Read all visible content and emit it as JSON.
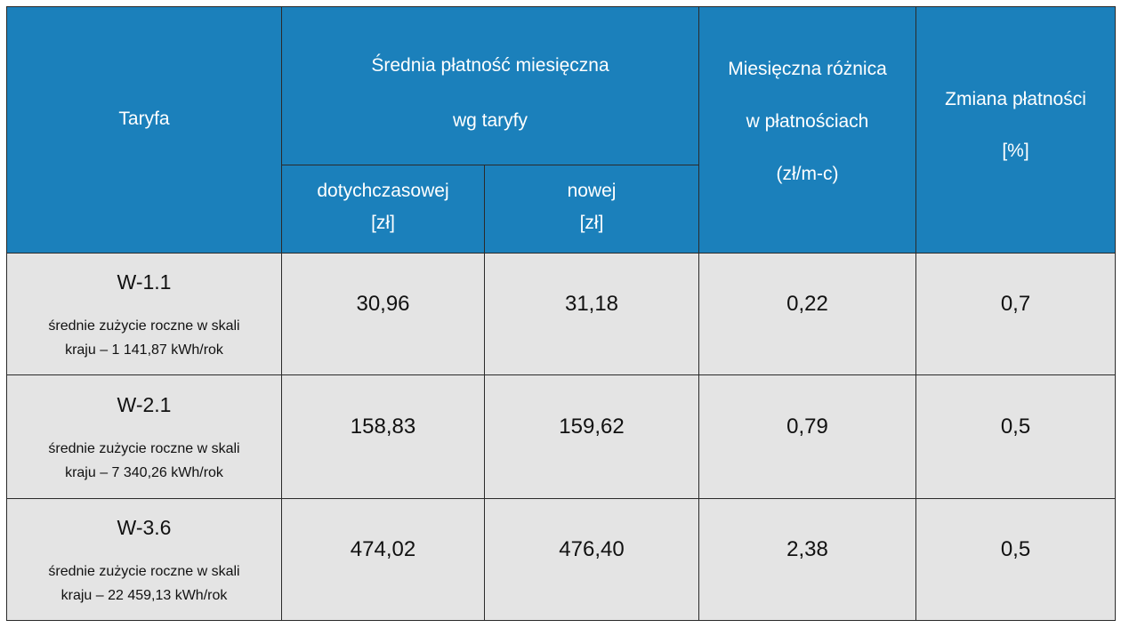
{
  "table": {
    "header": {
      "tariff": "Taryfa",
      "avg_payment": [
        "Średnia płatność miesięczna",
        "wg taryfy"
      ],
      "previous": [
        "dotychczasowej",
        "[zł]"
      ],
      "new": [
        "nowej",
        "[zł]"
      ],
      "monthly_diff": [
        "Miesięczna różnica",
        "w płatnościach",
        "(zł/m-c)"
      ],
      "change": [
        "Zmiana płatności",
        "[%]"
      ]
    },
    "rows": [
      {
        "tariff": "W-1.1",
        "note": [
          "średnie zużycie roczne w skali",
          "kraju – 1 141,87 kWh/rok"
        ],
        "previous": "30,96",
        "new": "31,18",
        "diff": "0,22",
        "change": "0,7"
      },
      {
        "tariff": "W-2.1",
        "note": [
          "średnie zużycie roczne w skali",
          "kraju – 7 340,26 kWh/rok"
        ],
        "previous": "158,83",
        "new": "159,62",
        "diff": "0,79",
        "change": "0,5"
      },
      {
        "tariff": "W-3.6",
        "note": [
          "średnie zużycie roczne w skali",
          "kraju – 22 459,13 kWh/rok"
        ],
        "previous": "474,02",
        "new": "476,40",
        "diff": "2,38",
        "change": "0,5"
      }
    ]
  }
}
